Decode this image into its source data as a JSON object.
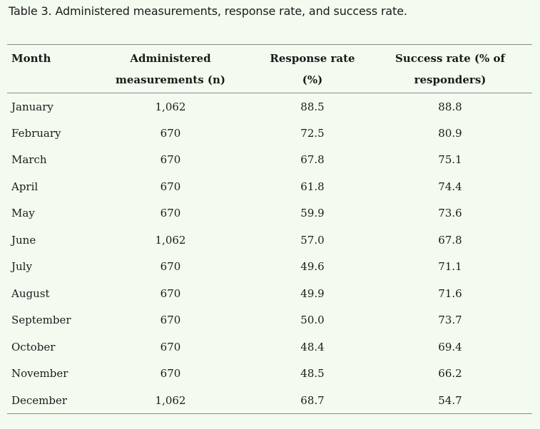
{
  "caption": "Table 3. Administered measurements, response rate, and success rate.",
  "headers": {
    "month": "Month",
    "administered": "Administered measurements (n)",
    "response": "Response rate (%)",
    "success": "Success rate (% of responders)"
  },
  "rows": [
    {
      "month": "January",
      "administered": "1,062",
      "response": "88.5",
      "success": "88.8"
    },
    {
      "month": "February",
      "administered": "670",
      "response": "72.5",
      "success": "80.9"
    },
    {
      "month": "March",
      "administered": "670",
      "response": "67.8",
      "success": "75.1"
    },
    {
      "month": "April",
      "administered": "670",
      "response": "61.8",
      "success": "74.4"
    },
    {
      "month": "May",
      "administered": "670",
      "response": "59.9",
      "success": "73.6"
    },
    {
      "month": "June",
      "administered": "1,062",
      "response": "57.0",
      "success": "67.8"
    },
    {
      "month": "July",
      "administered": "670",
      "response": "49.6",
      "success": "71.1"
    },
    {
      "month": "August",
      "administered": "670",
      "response": "49.9",
      "success": "71.6"
    },
    {
      "month": "September",
      "administered": "670",
      "response": "50.0",
      "success": "73.7"
    },
    {
      "month": "October",
      "administered": "670",
      "response": "48.4",
      "success": "69.4"
    },
    {
      "month": "November",
      "administered": "670",
      "response": "48.5",
      "success": "66.2"
    },
    {
      "month": "December",
      "administered": "1,062",
      "response": "68.7",
      "success": "54.7"
    }
  ]
}
